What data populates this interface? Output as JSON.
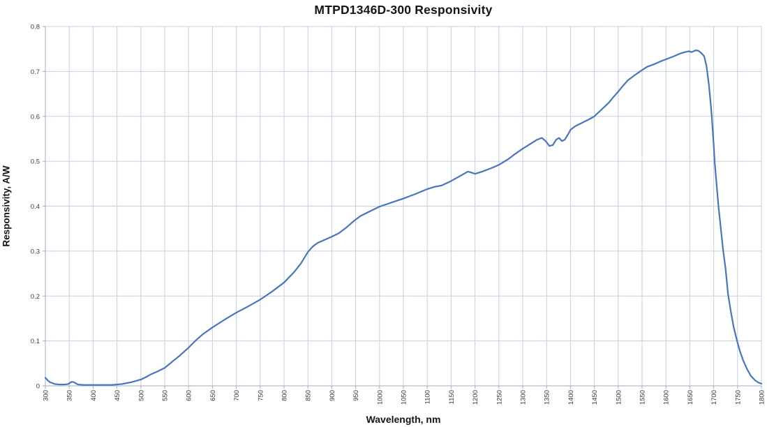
{
  "title": "MTPD1346D-300 Responsivity",
  "colors": {
    "series_line": "#4a75bc",
    "gridline": "#c5cfe4",
    "axis_line": "#9fadc6",
    "tick_label": "#3a3a3a",
    "title_text": "#151515",
    "background": "#ffffff"
  },
  "chart_data": {
    "type": "line",
    "title": "MTPD1346D-300 Responsivity",
    "xlabel": "Wavelength, nm",
    "ylabel": "Responsivity, A/W",
    "xlim": [
      300,
      1800
    ],
    "ylim": [
      0,
      0.8
    ],
    "grid": true,
    "legend": "none",
    "x_ticks": [
      300,
      350,
      400,
      450,
      500,
      550,
      600,
      650,
      700,
      750,
      800,
      850,
      900,
      950,
      1000,
      1050,
      1100,
      1150,
      1200,
      1250,
      1300,
      1350,
      1400,
      1450,
      1500,
      1550,
      1600,
      1650,
      1700,
      1750,
      1800
    ],
    "y_ticks": [
      {
        "value": 0.0,
        "label": "0"
      },
      {
        "value": 0.1,
        "label": "0.1"
      },
      {
        "value": 0.2,
        "label": "0.2"
      },
      {
        "value": 0.3,
        "label": "0.3"
      },
      {
        "value": 0.4,
        "label": "0.4"
      },
      {
        "value": 0.5,
        "label": "0.5"
      },
      {
        "value": 0.6,
        "label": "0.6"
      },
      {
        "value": 0.7,
        "label": "0.7"
      },
      {
        "value": 0.8,
        "label": "0.8"
      }
    ],
    "series": [
      {
        "name": "Responsivity",
        "color": "#4a75bc",
        "points": [
          [
            300,
            0.018
          ],
          [
            305,
            0.012
          ],
          [
            310,
            0.008
          ],
          [
            315,
            0.006
          ],
          [
            320,
            0.004
          ],
          [
            330,
            0.003
          ],
          [
            340,
            0.003
          ],
          [
            348,
            0.004
          ],
          [
            355,
            0.009
          ],
          [
            360,
            0.008
          ],
          [
            368,
            0.003
          ],
          [
            380,
            0.002
          ],
          [
            400,
            0.002
          ],
          [
            420,
            0.002
          ],
          [
            440,
            0.002
          ],
          [
            450,
            0.003
          ],
          [
            460,
            0.004
          ],
          [
            470,
            0.006
          ],
          [
            480,
            0.008
          ],
          [
            490,
            0.011
          ],
          [
            500,
            0.014
          ],
          [
            510,
            0.019
          ],
          [
            520,
            0.025
          ],
          [
            535,
            0.032
          ],
          [
            550,
            0.04
          ],
          [
            565,
            0.053
          ],
          [
            580,
            0.066
          ],
          [
            600,
            0.085
          ],
          [
            615,
            0.101
          ],
          [
            630,
            0.115
          ],
          [
            650,
            0.13
          ],
          [
            675,
            0.147
          ],
          [
            700,
            0.163
          ],
          [
            725,
            0.177
          ],
          [
            750,
            0.192
          ],
          [
            775,
            0.21
          ],
          [
            800,
            0.23
          ],
          [
            820,
            0.252
          ],
          [
            835,
            0.272
          ],
          [
            850,
            0.298
          ],
          [
            860,
            0.31
          ],
          [
            870,
            0.318
          ],
          [
            885,
            0.325
          ],
          [
            900,
            0.332
          ],
          [
            915,
            0.34
          ],
          [
            930,
            0.352
          ],
          [
            945,
            0.366
          ],
          [
            960,
            0.378
          ],
          [
            975,
            0.386
          ],
          [
            1000,
            0.399
          ],
          [
            1025,
            0.408
          ],
          [
            1050,
            0.417
          ],
          [
            1075,
            0.427
          ],
          [
            1100,
            0.438
          ],
          [
            1115,
            0.443
          ],
          [
            1130,
            0.446
          ],
          [
            1150,
            0.456
          ],
          [
            1170,
            0.468
          ],
          [
            1185,
            0.477
          ],
          [
            1192,
            0.475
          ],
          [
            1200,
            0.472
          ],
          [
            1215,
            0.477
          ],
          [
            1235,
            0.485
          ],
          [
            1250,
            0.492
          ],
          [
            1270,
            0.505
          ],
          [
            1285,
            0.517
          ],
          [
            1300,
            0.528
          ],
          [
            1315,
            0.538
          ],
          [
            1330,
            0.548
          ],
          [
            1340,
            0.552
          ],
          [
            1348,
            0.545
          ],
          [
            1356,
            0.534
          ],
          [
            1363,
            0.536
          ],
          [
            1370,
            0.548
          ],
          [
            1376,
            0.552
          ],
          [
            1382,
            0.545
          ],
          [
            1388,
            0.548
          ],
          [
            1395,
            0.56
          ],
          [
            1400,
            0.57
          ],
          [
            1410,
            0.578
          ],
          [
            1425,
            0.586
          ],
          [
            1440,
            0.594
          ],
          [
            1450,
            0.6
          ],
          [
            1465,
            0.615
          ],
          [
            1480,
            0.63
          ],
          [
            1490,
            0.643
          ],
          [
            1500,
            0.655
          ],
          [
            1510,
            0.668
          ],
          [
            1520,
            0.68
          ],
          [
            1535,
            0.692
          ],
          [
            1550,
            0.703
          ],
          [
            1560,
            0.71
          ],
          [
            1575,
            0.716
          ],
          [
            1590,
            0.723
          ],
          [
            1600,
            0.727
          ],
          [
            1615,
            0.733
          ],
          [
            1630,
            0.74
          ],
          [
            1640,
            0.743
          ],
          [
            1648,
            0.745
          ],
          [
            1654,
            0.743
          ],
          [
            1662,
            0.747
          ],
          [
            1668,
            0.746
          ],
          [
            1675,
            0.74
          ],
          [
            1680,
            0.734
          ],
          [
            1685,
            0.712
          ],
          [
            1690,
            0.67
          ],
          [
            1692,
            0.648
          ],
          [
            1694,
            0.625
          ],
          [
            1696,
            0.6
          ],
          [
            1698,
            0.568
          ],
          [
            1700,
            0.538
          ],
          [
            1702,
            0.5
          ],
          [
            1706,
            0.45
          ],
          [
            1710,
            0.4
          ],
          [
            1715,
            0.35
          ],
          [
            1720,
            0.3
          ],
          [
            1725,
            0.26
          ],
          [
            1730,
            0.205
          ],
          [
            1736,
            0.165
          ],
          [
            1742,
            0.13
          ],
          [
            1749,
            0.1
          ],
          [
            1755,
            0.077
          ],
          [
            1762,
            0.056
          ],
          [
            1770,
            0.037
          ],
          [
            1778,
            0.022
          ],
          [
            1787,
            0.012
          ],
          [
            1794,
            0.007
          ],
          [
            1800,
            0.005
          ]
        ]
      }
    ]
  }
}
